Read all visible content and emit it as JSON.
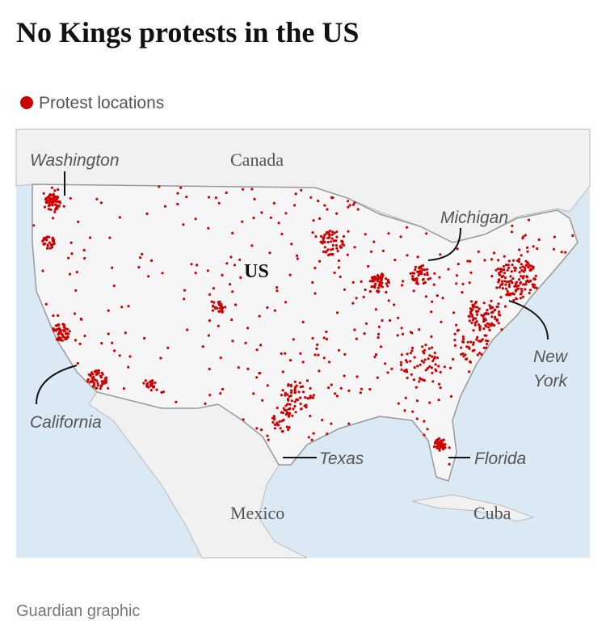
{
  "header": {
    "title": "No Kings protests in the US"
  },
  "legend": {
    "label": "Protest locations"
  },
  "map": {
    "labels": {
      "washington": "Washington",
      "canada": "Canada",
      "michigan": "Michigan",
      "us": "US",
      "new_york": "New York",
      "california": "California",
      "texas": "Texas",
      "florida": "Florida",
      "mexico": "Mexico",
      "cuba": "Cuba"
    }
  },
  "footer": {
    "source": "Guardian graphic"
  }
}
